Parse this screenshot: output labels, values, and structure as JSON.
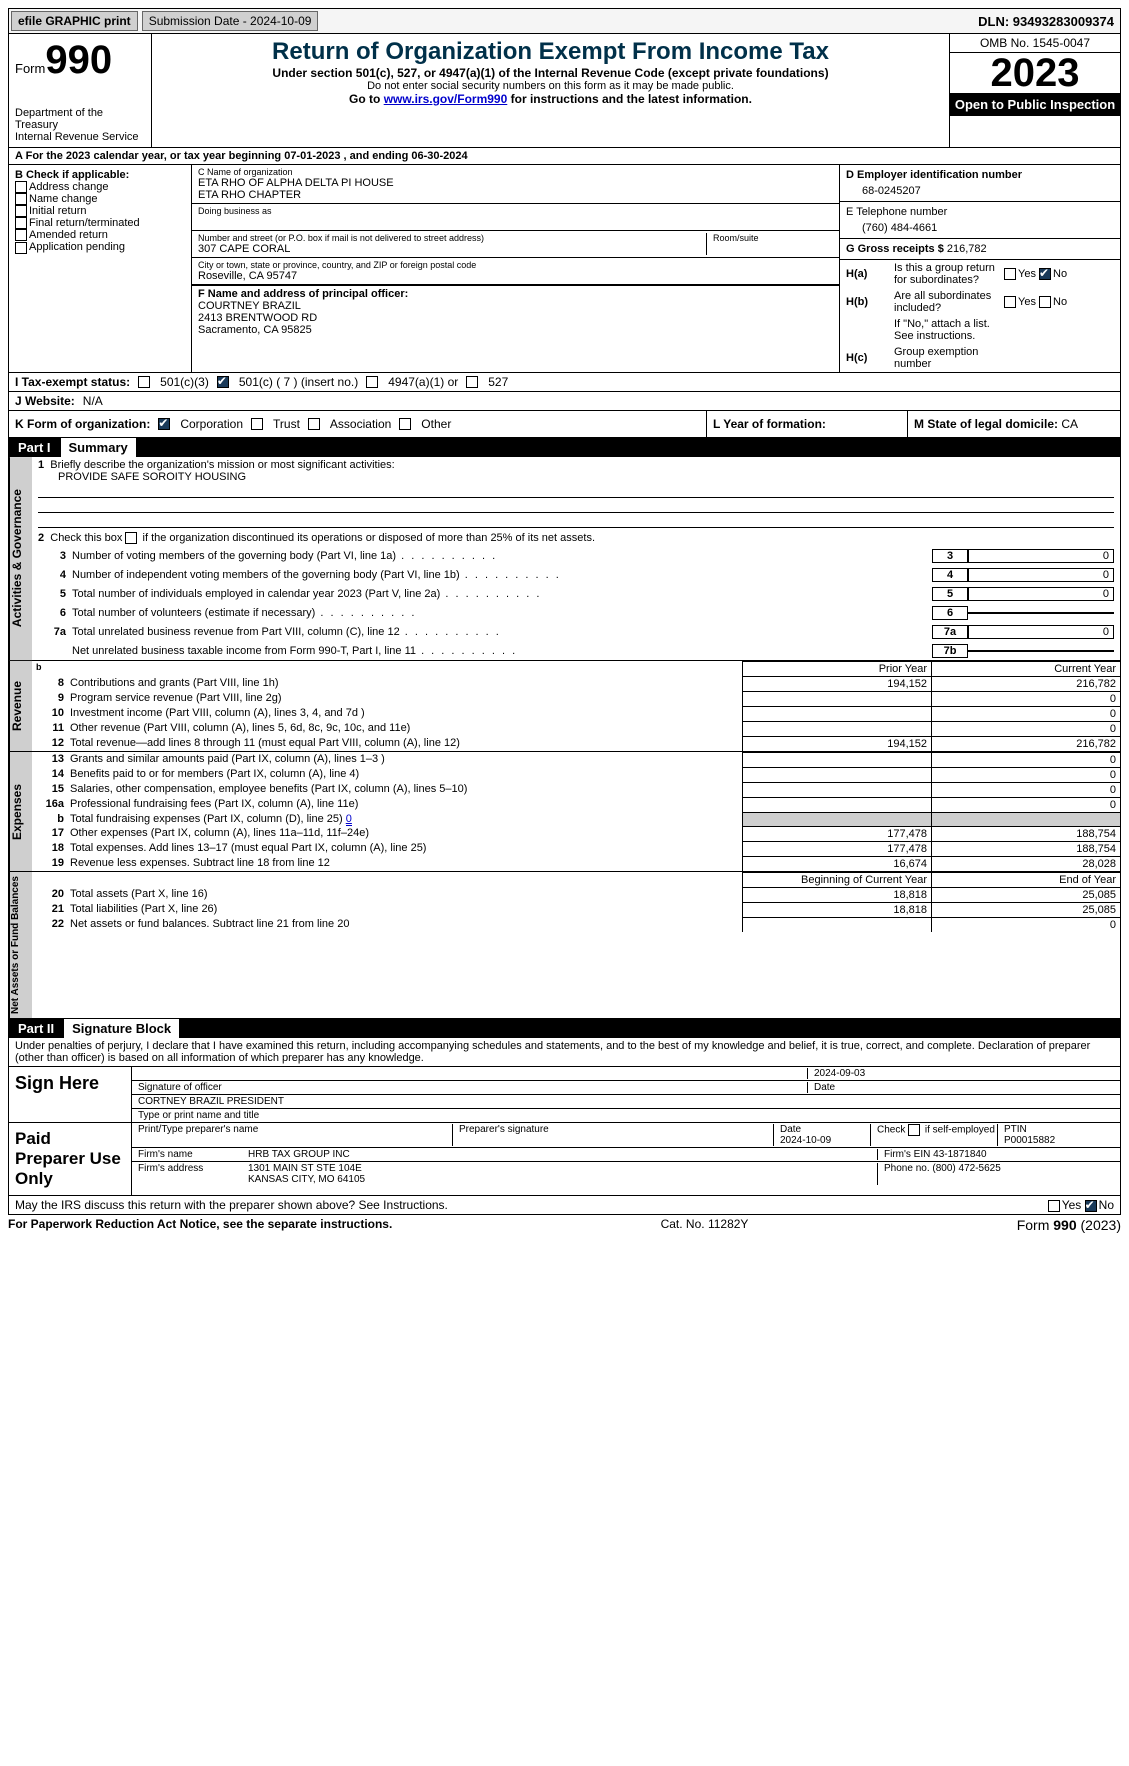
{
  "topbar": {
    "efile": "efile GRAPHIC print",
    "submission": "Submission Date - 2024-10-09",
    "dln": "DLN: 93493283009374"
  },
  "header": {
    "form_word": "Form",
    "form_num": "990",
    "dept": "Department of the Treasury\nInternal Revenue Service",
    "title": "Return of Organization Exempt From Income Tax",
    "sub1": "Under section 501(c), 527, or 4947(a)(1) of the Internal Revenue Code (except private foundations)",
    "sub2": "Do not enter social security numbers on this form as it may be made public.",
    "sub3_pre": "Go to ",
    "sub3_link": "www.irs.gov/Form990",
    "sub3_post": " for instructions and the latest information.",
    "omb": "OMB No. 1545-0047",
    "year": "2023",
    "open": "Open to Public Inspection"
  },
  "line_a": "For the 2023 calendar year, or tax year beginning 07-01-2023    , and ending 06-30-2024",
  "col_b": {
    "hdr": "B Check if applicable:",
    "items": [
      "Address change",
      "Name change",
      "Initial return",
      "Final return/terminated",
      "Amended return",
      "Application pending"
    ]
  },
  "col_c": {
    "name_lbl": "C Name of organization",
    "name1": "ETA RHO OF ALPHA DELTA PI HOUSE",
    "name2": "ETA RHO CHAPTER",
    "dba_lbl": "Doing business as",
    "addr_lbl": "Number and street (or P.O. box if mail is not delivered to street address)",
    "addr": "307 CAPE CORAL",
    "room_lbl": "Room/suite",
    "city_lbl": "City or town, state or province, country, and ZIP or foreign postal code",
    "city": "Roseville, CA  95747",
    "f_lbl": "F  Name and address of principal officer:",
    "f1": "COURTNEY BRAZIL",
    "f2": "2413 BRENTWOOD RD",
    "f3": "Sacramento, CA  95825"
  },
  "col_d": {
    "ein_lbl": "D Employer identification number",
    "ein": "68-0245207",
    "tel_lbl": "E Telephone number",
    "tel": "(760) 484-4661",
    "gross_lbl": "G Gross receipts $ ",
    "gross": "216,782"
  },
  "ha": {
    "a_lbl": "H(a)",
    "a_txt": "Is this a group return for subordinates?",
    "b_lbl": "H(b)",
    "b_txt": "Are all subordinates included?",
    "b_note": "If \"No,\" attach a list. See instructions.",
    "c_lbl": "H(c)",
    "c_txt": "Group exemption number",
    "yes": "Yes",
    "no": "No"
  },
  "line_i": {
    "lbl": "I   Tax-exempt status:",
    "opt1": "501(c)(3)",
    "opt2": "501(c) ( 7 ) (insert no.)",
    "opt3": "4947(a)(1) or",
    "opt4": "527"
  },
  "line_j": {
    "lbl": "J   Website:",
    "val": "N/A"
  },
  "line_k": {
    "lbl": "K Form of organization:",
    "opts": [
      "Corporation",
      "Trust",
      "Association",
      "Other"
    ]
  },
  "line_l": {
    "lbl": "L Year of formation:"
  },
  "line_m": {
    "lbl": "M State of legal domicile: ",
    "val": "CA"
  },
  "part1": {
    "num": "Part I",
    "title": "Summary",
    "q1": "Briefly describe the organization's mission or most significant activities:",
    "q1_val": "PROVIDE SAFE SOROITY HOUSING",
    "q2": "Check this box       if the organization discontinued its operations or disposed of more than 25% of its net assets.",
    "rows_gov": [
      {
        "n": "3",
        "t": "Number of voting members of the governing body (Part VI, line 1a)",
        "v": "0"
      },
      {
        "n": "4",
        "t": "Number of independent voting members of the governing body (Part VI, line 1b)",
        "v": "0"
      },
      {
        "n": "5",
        "t": "Total number of individuals employed in calendar year 2023 (Part V, line 2a)",
        "v": "0"
      },
      {
        "n": "6",
        "t": "Total number of volunteers (estimate if necessary)",
        "v": ""
      },
      {
        "n": "7a",
        "t": "Total unrelated business revenue from Part VIII, column (C), line 12",
        "v": "0"
      },
      {
        "n": "",
        "t": "Net unrelated business taxable income from Form 990-T, Part I, line 11",
        "b": "7b",
        "v": ""
      }
    ],
    "col_py": "Prior Year",
    "col_cy": "Current Year",
    "side_gov": "Activities & Governance",
    "side_rev": "Revenue",
    "side_exp": "Expenses",
    "side_net": "Net Assets or Fund Balances",
    "col_boy": "Beginning of Current Year",
    "col_eoy": "End of Year",
    "rows_rev": [
      {
        "n": "8",
        "t": "Contributions and grants (Part VIII, line 1h)",
        "py": "194,152",
        "cy": "216,782"
      },
      {
        "n": "9",
        "t": "Program service revenue (Part VIII, line 2g)",
        "py": "",
        "cy": "0"
      },
      {
        "n": "10",
        "t": "Investment income (Part VIII, column (A), lines 3, 4, and 7d )",
        "py": "",
        "cy": "0"
      },
      {
        "n": "11",
        "t": "Other revenue (Part VIII, column (A), lines 5, 6d, 8c, 9c, 10c, and 11e)",
        "py": "",
        "cy": "0"
      },
      {
        "n": "12",
        "t": "Total revenue—add lines 8 through 11 (must equal Part VIII, column (A), line 12)",
        "py": "194,152",
        "cy": "216,782"
      }
    ],
    "rows_exp": [
      {
        "n": "13",
        "t": "Grants and similar amounts paid (Part IX, column (A), lines 1–3 )",
        "py": "",
        "cy": "0"
      },
      {
        "n": "14",
        "t": "Benefits paid to or for members (Part IX, column (A), line 4)",
        "py": "",
        "cy": "0"
      },
      {
        "n": "15",
        "t": "Salaries, other compensation, employee benefits (Part IX, column (A), lines 5–10)",
        "py": "",
        "cy": "0"
      },
      {
        "n": "16a",
        "t": "Professional fundraising fees (Part IX, column (A), line 11e)",
        "py": "",
        "cy": "0"
      },
      {
        "n": "b",
        "t": "Total fundraising expenses (Part IX, column (D), line 25) ",
        "u": "0",
        "py": "gray",
        "cy": "gray"
      },
      {
        "n": "17",
        "t": "Other expenses (Part IX, column (A), lines 11a–11d, 11f–24e)",
        "py": "177,478",
        "cy": "188,754"
      },
      {
        "n": "18",
        "t": "Total expenses. Add lines 13–17 (must equal Part IX, column (A), line 25)",
        "py": "177,478",
        "cy": "188,754"
      },
      {
        "n": "19",
        "t": "Revenue less expenses. Subtract line 18 from line 12",
        "py": "16,674",
        "cy": "28,028"
      }
    ],
    "rows_net": [
      {
        "n": "20",
        "t": "Total assets (Part X, line 16)",
        "py": "18,818",
        "cy": "25,085"
      },
      {
        "n": "21",
        "t": "Total liabilities (Part X, line 26)",
        "py": "18,818",
        "cy": "25,085"
      },
      {
        "n": "22",
        "t": "Net assets or fund balances. Subtract line 21 from line 20",
        "py": "",
        "cy": "0"
      }
    ]
  },
  "part2": {
    "num": "Part II",
    "title": "Signature Block",
    "decl": "Under penalties of perjury, I declare that I have examined this return, including accompanying schedules and statements, and to the best of my knowledge and belief, it is true, correct, and complete. Declaration of preparer (other than officer) is based on all information of which preparer has any knowledge.",
    "sign_here": "Sign Here",
    "sig_date": "2024-09-03",
    "sig_lbl": "Signature of officer",
    "date_lbl": "Date",
    "officer": "CORTNEY BRAZIL  PRESIDENT",
    "type_lbl": "Type or print name and title",
    "paid": "Paid Preparer Use Only",
    "prep_name_lbl": "Print/Type preparer's name",
    "prep_sig_lbl": "Preparer's signature",
    "prep_date_lbl": "Date",
    "prep_date": "2024-10-09",
    "prep_check": "Check         if self-employed",
    "ptin_lbl": "PTIN",
    "ptin": "P00015882",
    "firm_name_lbl": "Firm's name",
    "firm_name": "HRB TAX GROUP INC",
    "firm_ein_lbl": "Firm's EIN",
    "firm_ein": "43-1871840",
    "firm_addr_lbl": "Firm's address",
    "firm_addr1": "1301 MAIN ST STE 104E",
    "firm_addr2": "KANSAS CITY, MO  64105",
    "phone_lbl": "Phone no.",
    "phone": "(800) 472-5625",
    "discuss": "May the IRS discuss this return with the preparer shown above? See Instructions."
  },
  "footer": {
    "left": "For Paperwork Reduction Act Notice, see the separate instructions.",
    "mid": "Cat. No. 11282Y",
    "right_pre": "Form ",
    "right_b": "990",
    "right_post": " (2023)"
  },
  "colors": {
    "title": "#003049",
    "check": "#1a3a5a",
    "side": "#cfcfcf"
  }
}
